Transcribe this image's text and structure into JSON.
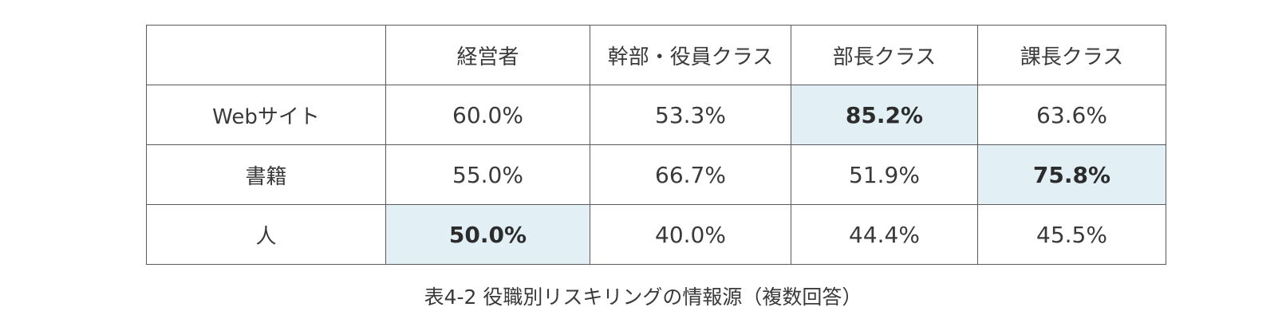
{
  "table": {
    "header": [
      "",
      "経営者",
      "幹部・役員クラス",
      "部長クラス",
      "課長クラス"
    ],
    "rows": [
      {
        "label": "Webサイト",
        "values": [
          "60.0%",
          "53.3%",
          "85.2%",
          "63.6%"
        ],
        "highlight_index": 2
      },
      {
        "label": "書籍",
        "values": [
          "55.0%",
          "66.7%",
          "51.9%",
          "75.8%"
        ],
        "highlight_index": 3
      },
      {
        "label": "人",
        "values": [
          "50.0%",
          "40.0%",
          "44.4%",
          "45.5%"
        ],
        "highlight_index": 0
      }
    ],
    "highlight_color": "#e2f0f5",
    "border_color": "#5a5a5a"
  },
  "caption": "表4-2 役職別リスキリングの情報源（複数回答）"
}
